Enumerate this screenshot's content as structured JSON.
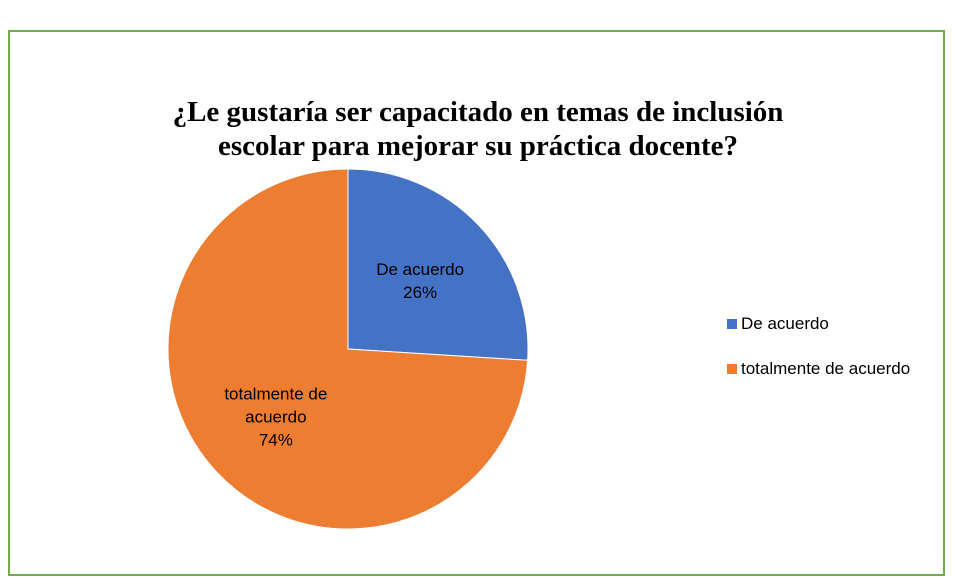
{
  "chart_data": {
    "type": "pie",
    "title": "¿Le gustaría ser capacitado en temas de inclusión escolar para mejorar su práctica docente?",
    "categories": [
      "De acuerdo",
      "totalmente de acuerdo"
    ],
    "values": [
      26,
      74
    ],
    "value_labels": [
      "26%",
      "74%"
    ],
    "colors": [
      "#4472c4",
      "#ed7d31"
    ],
    "legend": "right"
  }
}
